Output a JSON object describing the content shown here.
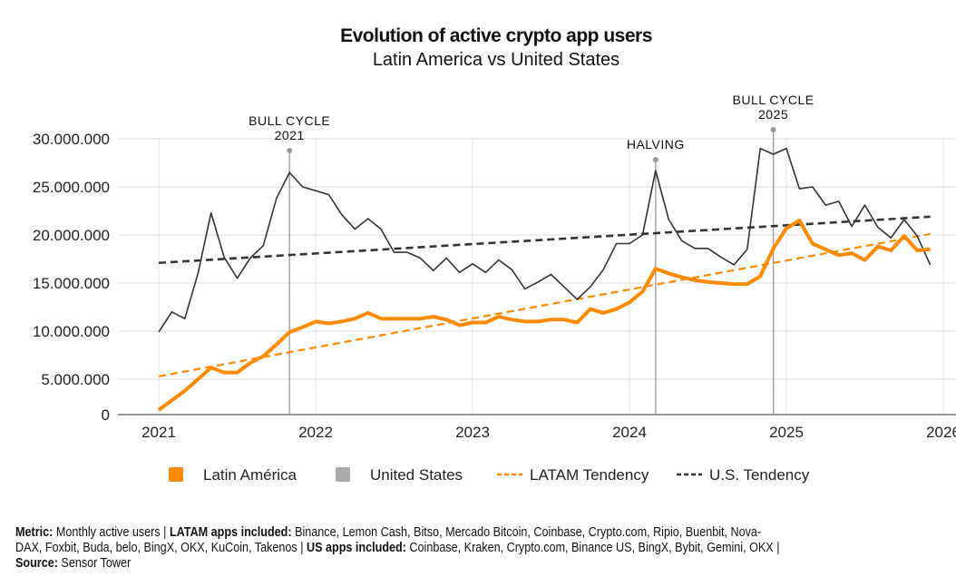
{
  "chart_data": {
    "type": "line",
    "title": "Evolution of active crypto app users",
    "subtitle": "Latin America vs United States",
    "x_ticks": [
      "2021",
      "2022",
      "2023",
      "2024",
      "2025",
      "2026"
    ],
    "y_ticks": [
      "0",
      "5.000.000",
      "10.000.000",
      "15.000.000",
      "20.000.000",
      "25.000.000",
      "30.000.000"
    ],
    "ylim": [
      0,
      30000000
    ],
    "x_start": "2021-01",
    "x_end": "2025-12",
    "grid": true,
    "legend_position": "bottom",
    "series": [
      {
        "name": "Latin América",
        "color": "#ff8a00",
        "style": "solid-thick",
        "values": [
          1.8,
          2.8,
          3.8,
          5.0,
          6.2,
          5.7,
          5.7,
          6.7,
          7.4,
          8.6,
          9.9,
          10.4,
          11.0,
          10.8,
          11.0,
          11.3,
          11.9,
          11.3,
          11.3,
          11.3,
          11.3,
          11.5,
          11.2,
          10.6,
          10.9,
          10.9,
          11.5,
          11.2,
          11.0,
          11.0,
          11.2,
          11.2,
          10.9,
          12.3,
          11.9,
          12.3,
          13.0,
          14.1,
          16.5,
          16.0,
          15.6,
          15.3,
          15.1,
          15.0,
          14.9,
          14.9,
          15.7,
          18.6,
          20.7,
          21.5,
          19.1,
          18.5,
          17.9,
          18.1,
          17.4,
          18.8,
          18.4,
          19.9,
          18.4,
          18.5
        ]
      },
      {
        "name": "United States",
        "color": "#333333",
        "style": "solid-thin",
        "values": [
          9.9,
          12.0,
          11.3,
          16.0,
          22.3,
          17.7,
          15.5,
          17.6,
          18.9,
          23.8,
          26.5,
          25.0,
          24.6,
          24.2,
          22.1,
          20.6,
          21.7,
          20.6,
          18.2,
          18.2,
          17.6,
          16.3,
          17.6,
          16.1,
          17.0,
          16.1,
          17.4,
          16.4,
          14.4,
          15.1,
          15.9,
          14.6,
          13.3,
          14.6,
          16.4,
          19.1,
          19.1,
          20.0,
          26.7,
          21.6,
          19.4,
          18.6,
          18.6,
          17.7,
          16.9,
          18.5,
          29.0,
          28.4,
          29.0,
          24.8,
          25.0,
          23.1,
          23.5,
          20.9,
          23.1,
          20.8,
          19.7,
          21.6,
          19.9,
          16.9
        ]
      },
      {
        "name": "LATAM Tendency",
        "color": "#ff8a00",
        "style": "dashed",
        "values_endpoints": [
          5.3,
          20.1
        ]
      },
      {
        "name": "U.S. Tendency",
        "color": "#333333",
        "style": "dashed",
        "values_endpoints": [
          17.1,
          21.9
        ]
      }
    ],
    "values_unit": "millions of monthly active users",
    "annotations": [
      {
        "label_lines": [
          "BULL CYCLE",
          "2021"
        ],
        "month_index": 10
      },
      {
        "label_lines": [
          "HALVING"
        ],
        "month_index": 38
      },
      {
        "label_lines": [
          "BULL CYCLE",
          "2025"
        ],
        "month_index": 47
      }
    ]
  },
  "footer": {
    "metric_label": "Metric:",
    "metric_text": " Monthly active users | ",
    "latam_label": "LATAM apps included:",
    "latam_text_1": " Binance, Lemon Cash, Bitso, Mercado Bitcoin, Coinbase, Crypto.com, Ripio, Buenbit, Nova-",
    "latam_text_2": "DAX, Foxbit, Buda, belo, BingX, OKX, KuCoin, Takenos | ",
    "us_label": "US apps included:",
    "us_text": " Coinbase, Kraken, Crypto.com, Binance US, BingX, Bybit, Gemini, OKX |",
    "source_label": "Source:",
    "source_text": " Sensor Tower"
  }
}
